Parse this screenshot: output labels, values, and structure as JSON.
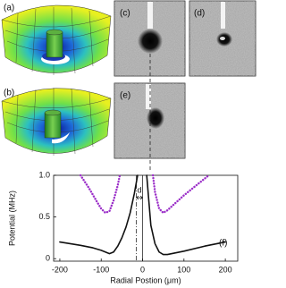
{
  "panels": [
    "(a)",
    "(b)",
    "(c)",
    "(d)",
    "(e)"
  ],
  "chart_data": {
    "type": "line",
    "label": "(f)",
    "xlabel": "Radial Postion (μm)",
    "ylabel": "Potential (MHz)",
    "xlim": [
      -215,
      230
    ],
    "xticks": [
      -200,
      -100,
      0,
      100,
      200
    ],
    "ylim": [
      -0.03,
      1.0
    ],
    "yticks": [
      0,
      0.5,
      {
        "value": 1.0,
        "label": "1.0"
      }
    ],
    "vlines": [
      {
        "x": -15,
        "style": "dashdot"
      },
      {
        "x": 0,
        "style": "solid"
      }
    ],
    "annotation": "d",
    "series": [
      {
        "color": "#111111",
        "style": "solid",
        "x": [
          -200,
          -150,
          -120,
          -100,
          -90,
          -80,
          -70,
          -60,
          -50,
          -40,
          -30,
          -20,
          -12,
          null,
          10,
          15,
          20,
          30,
          40,
          50,
          60,
          80,
          100,
          150,
          200
        ],
        "values": [
          0.2,
          0.16,
          0.13,
          0.1,
          0.08,
          0.06,
          0.08,
          0.15,
          0.25,
          0.38,
          0.55,
          0.78,
          1.0,
          null,
          1.0,
          0.7,
          0.4,
          0.18,
          0.08,
          0.05,
          0.05,
          0.07,
          0.09,
          0.15,
          0.2
        ]
      },
      {
        "color": "#9b30c8",
        "style": "dotted",
        "x": [
          -150,
          -130,
          -110,
          -100,
          -90,
          -80,
          -70,
          -60,
          -55,
          null,
          25,
          30,
          40,
          50,
          60,
          80,
          100,
          130,
          160
        ],
        "values": [
          1.0,
          0.85,
          0.68,
          0.6,
          0.55,
          0.57,
          0.7,
          0.88,
          1.0,
          null,
          1.0,
          0.8,
          0.6,
          0.55,
          0.58,
          0.67,
          0.76,
          0.88,
          1.0
        ]
      }
    ]
  }
}
